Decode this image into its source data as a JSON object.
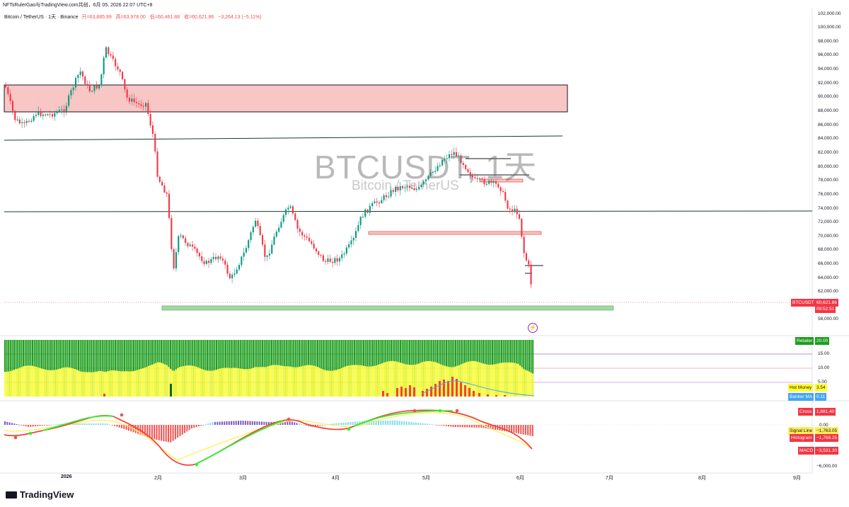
{
  "header": {
    "title": "NFTsRulerGao与TradingView.com共创，6月 05, 2026 22:07 UTC+8"
  },
  "legend": {
    "symbol": "Bitcoin / TetherUS · 1天 · Binance",
    "open": "开=63,885.99",
    "high": "高=63,978.00",
    "low": "低=60,461.88",
    "close": "收=60,621.86",
    "change": "−3,264.13 (−5.11%)"
  },
  "watermark": {
    "main": "BTCUSDT, 1天",
    "sub": "Bitcoin / TetherUS"
  },
  "price_axis": {
    "labels": [
      "102,000.00",
      "100,000.00",
      "98,000.00",
      "96,000.00",
      "94,000.00",
      "92,000.00",
      "90,000.00",
      "88,000.00",
      "86,000.00",
      "84,000.00",
      "82,000.00",
      "80,000.00",
      "78,000.00",
      "76,000.00",
      "74,000.00",
      "72,000.00",
      "70,000.00",
      "68,000.00",
      "66,000.00",
      "64,000.00",
      "62,000.00",
      "58,000.00"
    ],
    "current_symbol": "BTCUSDT",
    "current_price": "60,621.86",
    "countdown": "09:52:51"
  },
  "indicator1": {
    "axis_labels": [
      "15.00",
      "10.00",
      "5.00"
    ],
    "retailer_label": "Retailer",
    "retailer_value": "20.00",
    "hot_money_label": "Hot Money",
    "hot_money_value": "3.54",
    "banker_ma_label": "Banker MA",
    "banker_ma_value": "0.11"
  },
  "indicator2": {
    "axis_labels": [
      "0.00",
      "−6,000.00"
    ],
    "cross_label": "Cross",
    "cross_value": "1,881.40",
    "signal_label": "Signal Line",
    "signal_value": "−1,763.05",
    "histogram_label": "Histogram",
    "histogram_value": "−1,768.25",
    "macd_label": "MACD",
    "macd_value": "−3,531.30"
  },
  "time_axis": {
    "labels": [
      "2026",
      "2月",
      "3月",
      "4月",
      "5月",
      "6月",
      "7月",
      "8月",
      "9月"
    ]
  },
  "branding": {
    "logo_text": "TradingView"
  },
  "colors": {
    "up": "#089981",
    "down": "#f23645",
    "zone_red": "#f8c6c4",
    "zone_green": "#a5d6a7",
    "retailer_green": "#1e9e1e",
    "hot_money_yellow": "#ffff33",
    "banker_red": "#f44336",
    "macd_green": "#33ee33",
    "signal_yellow": "#ffee58"
  },
  "chart_data": {
    "type": "candlestick",
    "title": "BTCUSDT, 1天",
    "ylim": [
      57000,
      102500
    ],
    "candle_colors": {
      "up": "#089981",
      "down": "#f23645"
    }
  }
}
